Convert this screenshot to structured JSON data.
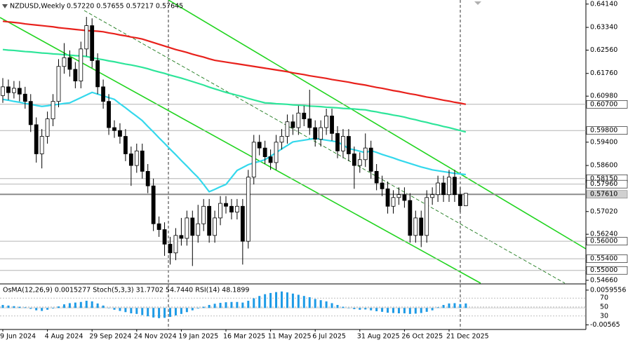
{
  "chart_data": {
    "type": "candlestick",
    "title": "NZDUSD,Weekly",
    "ohlc_text": "0.57220 0.57655 0.57217 0.57645",
    "up_color": "#ffffff",
    "down_color": "#000000",
    "categories": [
      "9 Jun 2024",
      null,
      null,
      null,
      null,
      null,
      null,
      null,
      "4 Aug 2024",
      null,
      null,
      null,
      null,
      null,
      null,
      null,
      "29 Sep 2024",
      null,
      null,
      null,
      null,
      null,
      null,
      null,
      "24 Nov 2024",
      null,
      null,
      null,
      null,
      null,
      null,
      null,
      "19 Jan 2025",
      null,
      null,
      null,
      null,
      null,
      null,
      null,
      "16 Mar 2025",
      null,
      null,
      null,
      null,
      null,
      null,
      null,
      "11 May 2025",
      null,
      null,
      null,
      null,
      null,
      null,
      null,
      "6 Jul 2025",
      null,
      null,
      null,
      null,
      null,
      null,
      null,
      "31 Aug 2025",
      null,
      null,
      null,
      null,
      null,
      null,
      null,
      "26 Oct 2025",
      null,
      null,
      null,
      null,
      null,
      null,
      null,
      "21 Dec 2025",
      null,
      null,
      null
    ],
    "open": [
      0.61,
      0.613,
      0.611,
      0.6125,
      0.6105,
      0.608,
      0.6,
      0.59,
      0.596,
      0.602,
      0.608,
      0.62,
      0.623,
      0.619,
      0.615,
      0.626,
      0.634,
      0.622,
      0.613,
      0.608,
      0.599,
      0.598,
      0.596,
      0.59,
      0.586,
      0.591,
      0.584,
      0.579,
      0.566,
      0.564,
      0.559,
      0.556,
      0.562,
      0.561,
      0.568,
      0.562,
      0.566,
      0.572,
      0.562,
      0.568,
      0.573,
      0.572,
      0.57,
      0.572,
      0.56,
      0.582,
      0.594,
      0.592,
      0.589,
      0.587,
      0.594,
      0.596,
      0.601,
      0.599,
      0.604,
      0.602,
      0.599,
      0.595,
      0.599,
      0.603,
      0.597,
      0.591,
      0.596,
      0.59,
      0.586,
      0.588,
      0.592,
      0.584,
      0.58,
      0.578,
      0.572,
      0.575,
      0.576,
      0.574,
      0.562,
      0.568,
      0.562,
      0.575,
      0.576,
      0.58,
      0.576,
      0.582,
      0.576,
      0.5722
    ],
    "high": [
      0.616,
      0.6155,
      0.615,
      0.615,
      0.613,
      0.6105,
      0.6025,
      0.5985,
      0.6045,
      0.6105,
      0.6225,
      0.628,
      0.6255,
      0.6215,
      0.6285,
      0.637,
      0.6365,
      0.6245,
      0.6155,
      0.6105,
      0.6015,
      0.6005,
      0.5985,
      0.5925,
      0.5935,
      0.5935,
      0.5865,
      0.5815,
      0.5685,
      0.5665,
      0.5615,
      0.5645,
      0.568,
      0.5705,
      0.5705,
      0.5725,
      0.5745,
      0.5745,
      0.5705,
      0.5755,
      0.5755,
      0.5745,
      0.5745,
      0.5745,
      0.5845,
      0.5965,
      0.5965,
      0.5945,
      0.5915,
      0.5965,
      0.5985,
      0.6035,
      0.6035,
      0.6065,
      0.6065,
      0.612,
      0.6015,
      0.6015,
      0.6055,
      0.6055,
      0.5995,
      0.5985,
      0.5985,
      0.5925,
      0.5905,
      0.597,
      0.5945,
      0.5865,
      0.5825,
      0.5805,
      0.5775,
      0.5785,
      0.5785,
      0.5765,
      0.5705,
      0.5705,
      0.5775,
      0.5785,
      0.5825,
      0.5825,
      0.5845,
      0.5845,
      0.5785,
      0.57655
    ],
    "low": [
      0.6075,
      0.6085,
      0.609,
      0.608,
      0.6055,
      0.5975,
      0.587,
      0.585,
      0.5935,
      0.5995,
      0.606,
      0.6175,
      0.6165,
      0.6125,
      0.6125,
      0.6235,
      0.6195,
      0.6105,
      0.6055,
      0.5965,
      0.5955,
      0.5935,
      0.5875,
      0.579,
      0.5835,
      0.5815,
      0.5765,
      0.5635,
      0.5615,
      0.555,
      0.552,
      0.5535,
      0.5585,
      0.5585,
      0.5515,
      0.5595,
      0.5635,
      0.5595,
      0.5595,
      0.5655,
      0.5695,
      0.5675,
      0.5675,
      0.552,
      0.5575,
      0.5795,
      0.5895,
      0.5865,
      0.5845,
      0.5845,
      0.5915,
      0.5935,
      0.5965,
      0.5965,
      0.5995,
      0.5965,
      0.5925,
      0.5925,
      0.5965,
      0.5945,
      0.5885,
      0.5885,
      0.5875,
      0.578,
      0.5835,
      0.5855,
      0.5815,
      0.5775,
      0.5755,
      0.5695,
      0.5695,
      0.5725,
      0.5715,
      0.5595,
      0.5595,
      0.558,
      0.5595,
      0.5725,
      0.5735,
      0.5735,
      0.5735,
      0.5735,
      0.57,
      0.57217
    ],
    "close": [
      0.613,
      0.611,
      0.6125,
      0.6105,
      0.608,
      0.6,
      0.59,
      0.596,
      0.602,
      0.608,
      0.62,
      0.623,
      0.619,
      0.615,
      0.626,
      0.634,
      0.622,
      0.613,
      0.608,
      0.599,
      0.598,
      0.596,
      0.59,
      0.586,
      0.591,
      0.584,
      0.579,
      0.566,
      0.564,
      0.559,
      0.556,
      0.562,
      0.561,
      0.568,
      0.562,
      0.566,
      0.572,
      0.562,
      0.568,
      0.573,
      0.572,
      0.57,
      0.572,
      0.56,
      0.582,
      0.594,
      0.592,
      0.589,
      0.587,
      0.594,
      0.596,
      0.601,
      0.599,
      0.604,
      0.602,
      0.599,
      0.595,
      0.599,
      0.603,
      0.597,
      0.591,
      0.596,
      0.59,
      0.586,
      0.588,
      0.592,
      0.584,
      0.58,
      0.578,
      0.572,
      0.575,
      0.576,
      0.574,
      0.562,
      0.568,
      0.562,
      0.575,
      0.576,
      0.58,
      0.576,
      0.582,
      0.576,
      0.5722,
      0.57645
    ],
    "moving_averages": [
      {
        "color": "#e8211c",
        "values": [
          0.6355,
          0.6353,
          0.6351,
          0.6349,
          0.6346,
          0.6344,
          0.6342,
          0.634,
          0.6338,
          0.6336,
          0.6333,
          0.6331,
          0.6329,
          0.6327,
          0.6325,
          0.6323,
          0.6322,
          0.6321,
          0.6319,
          0.6315,
          0.6312,
          0.6308,
          0.6305,
          0.6301,
          0.6298,
          0.6294,
          0.6288,
          0.6282,
          0.6276,
          0.627,
          0.6264,
          0.6258,
          0.6253,
          0.6248,
          0.6242,
          0.6237,
          0.6232,
          0.6226,
          0.6221,
          0.6218,
          0.6215,
          0.6212,
          0.6209,
          0.6206,
          0.6203,
          0.62,
          0.6197,
          0.6194,
          0.6191,
          0.6188,
          0.6185,
          0.6182,
          0.6178,
          0.6175,
          0.6172,
          0.6168,
          0.6165,
          0.6162,
          0.6159,
          0.6155,
          0.6152,
          0.6149,
          0.6146,
          0.6142,
          0.6139,
          0.6136,
          0.6132,
          0.6128,
          0.6125,
          0.6121,
          0.6117,
          0.6114,
          0.611,
          0.6106,
          0.6103,
          0.6099,
          0.6095,
          0.6092,
          0.6088,
          0.6084,
          0.6081,
          0.6077,
          0.6074,
          0.607
        ]
      },
      {
        "color": "#2ee59a",
        "values": [
          0.6258,
          0.6256,
          0.6255,
          0.6253,
          0.6251,
          0.625,
          0.6248,
          0.6246,
          0.6245,
          0.6243,
          0.6242,
          0.624,
          0.6239,
          0.6237,
          0.6236,
          0.6234,
          0.623,
          0.6226,
          0.6223,
          0.6219,
          0.6216,
          0.6212,
          0.6208,
          0.6205,
          0.6201,
          0.6197,
          0.6192,
          0.6186,
          0.6181,
          0.6176,
          0.617,
          0.6165,
          0.616,
          0.6154,
          0.6148,
          0.6142,
          0.6136,
          0.6129,
          0.6123,
          0.6117,
          0.6111,
          0.6106,
          0.6101,
          0.6096,
          0.609,
          0.6085,
          0.608,
          0.6075,
          0.6074,
          0.6072,
          0.6071,
          0.607,
          0.6068,
          0.6067,
          0.6066,
          0.6064,
          0.6063,
          0.6062,
          0.606,
          0.6059,
          0.6058,
          0.6056,
          0.6055,
          0.6054,
          0.6052,
          0.6051,
          0.6047,
          0.6044,
          0.604,
          0.6037,
          0.6033,
          0.603,
          0.6026,
          0.6021,
          0.6017,
          0.6012,
          0.6008,
          0.6003,
          0.5999,
          0.5994,
          0.599,
          0.5985,
          0.598,
          0.5975
        ]
      },
      {
        "color": "#34d8ec",
        "values": [
          0.6087,
          0.6084,
          0.608,
          0.6077,
          0.6073,
          0.607,
          0.6066,
          0.6063,
          0.6065,
          0.6068,
          0.607,
          0.6073,
          0.6075,
          0.6084,
          0.6093,
          0.6102,
          0.6111,
          0.6105,
          0.6099,
          0.6093,
          0.6087,
          0.6072,
          0.6058,
          0.6043,
          0.6029,
          0.6014,
          0.5994,
          0.5975,
          0.5955,
          0.5936,
          0.5916,
          0.5897,
          0.5877,
          0.5858,
          0.5838,
          0.5819,
          0.5795,
          0.577,
          0.5778,
          0.5787,
          0.5795,
          0.5819,
          0.5843,
          0.5853,
          0.5863,
          0.5869,
          0.5874,
          0.588,
          0.5892,
          0.5904,
          0.5917,
          0.5929,
          0.5941,
          0.5944,
          0.5947,
          0.595,
          0.5953,
          0.595,
          0.5947,
          0.5944,
          0.5941,
          0.593,
          0.5918,
          0.5914,
          0.5909,
          0.5904,
          0.5911,
          0.5905,
          0.5898,
          0.5892,
          0.5886,
          0.5879,
          0.5873,
          0.5867,
          0.5861,
          0.5855,
          0.585,
          0.5845,
          0.5842,
          0.5839,
          0.5836,
          0.5833,
          0.5831,
          0.5829
        ]
      }
    ],
    "ylim": [
      0.5456,
      0.6428
    ],
    "yticks": [
      {
        "value": 0.6414,
        "label": "0.64140"
      },
      {
        "value": 0.6334,
        "label": "0.63340"
      },
      {
        "value": 0.6256,
        "label": "0.62560"
      },
      {
        "value": 0.6176,
        "label": "0.61760"
      },
      {
        "value": 0.6098,
        "label": "0.60980"
      },
      {
        "value": 0.594,
        "label": "0.59400"
      },
      {
        "value": 0.586,
        "label": "0.58600"
      },
      {
        "value": 0.5702,
        "label": "0.57020"
      },
      {
        "value": 0.5624,
        "label": "0.56240"
      },
      {
        "value": 0.5466,
        "label": "0.54660"
      }
    ],
    "levels": [
      {
        "value": 0.607,
        "label": "0.60700"
      },
      {
        "value": 0.598,
        "label": "0.59800"
      },
      {
        "value": 0.5815,
        "label": "0.58150"
      },
      {
        "value": 0.5796,
        "label": "0.57960"
      },
      {
        "value": 0.5761,
        "label": "0.57610"
      },
      {
        "value": 0.56,
        "label": "0.56000"
      },
      {
        "value": 0.554,
        "label": "0.55400"
      },
      {
        "value": 0.55,
        "label": "0.55000"
      }
    ],
    "indicator": {
      "label": "OsMA(12,26,9) 0.0015277 Stoch(5,3,3) 31.7702 54.7440 RSI(14) 48.1899",
      "color": "#1e9be6",
      "values": [
        0.001,
        0.0008,
        0.0006,
        0.0004,
        0.0002,
        -0.0003,
        -0.0008,
        -0.001,
        -0.0006,
        -0.0002,
        0.0005,
        0.0012,
        0.0016,
        0.0018,
        0.002,
        0.0024,
        0.0022,
        0.0015,
        0.0008,
        0.0,
        -0.0006,
        -0.001,
        -0.0014,
        -0.0018,
        -0.002,
        -0.0024,
        -0.0028,
        -0.0032,
        -0.0034,
        -0.0033,
        -0.003,
        -0.0025,
        -0.002,
        -0.0014,
        -0.0008,
        -0.0002,
        0.0004,
        0.001,
        0.0014,
        0.0017,
        0.0019,
        0.002,
        0.002,
        0.0018,
        0.0024,
        0.0032,
        0.004,
        0.0046,
        0.005,
        0.0053,
        0.0055,
        0.0052,
        0.0048,
        0.0044,
        0.004,
        0.0036,
        0.003,
        0.0026,
        0.0022,
        0.0016,
        0.001,
        0.0004,
        0.0,
        -0.0004,
        -0.0006,
        -0.0005,
        -0.0008,
        -0.0011,
        -0.0013,
        -0.0016,
        -0.0017,
        -0.0018,
        -0.0018,
        -0.002,
        -0.0019,
        -0.0017,
        -0.0013,
        -0.0008,
        0.0002,
        0.001,
        0.0015,
        0.0016,
        0.0013,
        0.0015
      ],
      "ylim": [
        -0.0072,
        0.0078
      ],
      "yticks": [
        0.0059556,
        -0.00565
      ],
      "level_lim": [
        0,
        100
      ],
      "levels": [
        70,
        50,
        30
      ]
    }
  }
}
